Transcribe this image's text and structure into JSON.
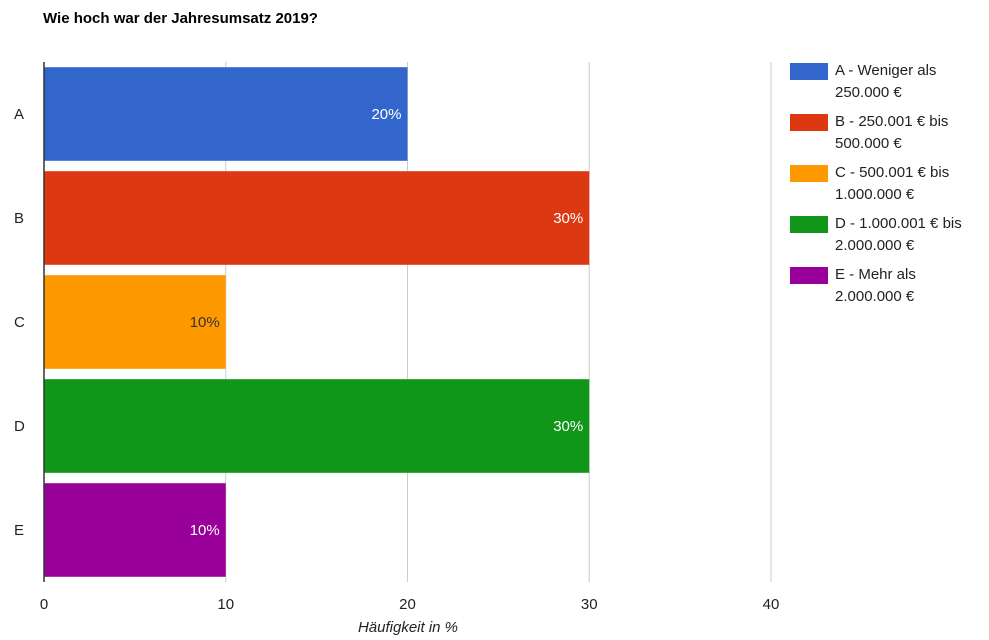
{
  "chart_data": {
    "type": "bar",
    "orientation": "horizontal",
    "title": "Wie hoch war der Jahresumsatz 2019?",
    "xlabel": "Häufigkeit in %",
    "ylabel": "",
    "xlim": [
      0,
      40
    ],
    "x_ticks": [
      0,
      10,
      20,
      30,
      40
    ],
    "grid": true,
    "legend_position": "right",
    "categories": [
      "A",
      "B",
      "C",
      "D",
      "E"
    ],
    "values": [
      20,
      30,
      10,
      30,
      10
    ],
    "data_labels": [
      "20%",
      "30%",
      "10%",
      "30%",
      "10%"
    ],
    "colors": [
      "#3366cc",
      "#dc3912",
      "#ff9900",
      "#109618",
      "#990099"
    ],
    "label_colors": [
      "#ffffff",
      "#ffffff",
      "#333333",
      "#ffffff",
      "#ffffff"
    ],
    "legend": [
      "A - Weniger als 250.000 €",
      "B - 250.001 € bis 500.000 €",
      "C - 500.001 € bis 1.000.000 €",
      "D - 1.000.001 € bis 2.000.000 €",
      "E - Mehr als 2.000.000 €"
    ]
  }
}
